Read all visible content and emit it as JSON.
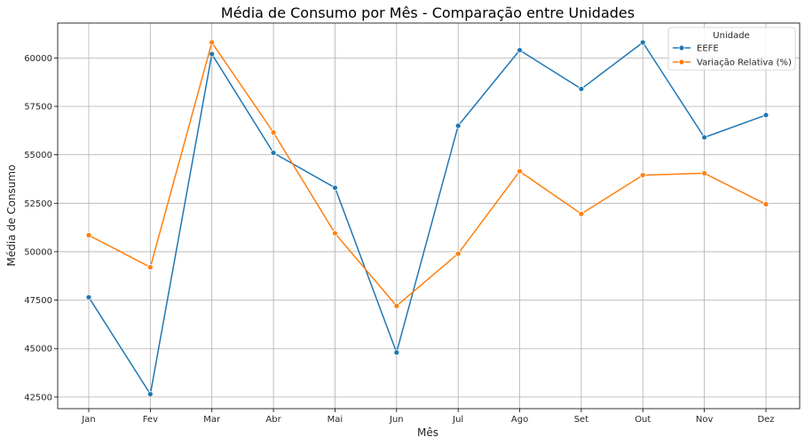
{
  "chart_data": {
    "type": "line",
    "title": "Média de Consumo por Mês - Comparação entre Unidades",
    "xlabel": "Mês",
    "ylabel": "Média de Consumo",
    "categories": [
      "Jan",
      "Fev",
      "Mar",
      "Abr",
      "Mai",
      "Jun",
      "Jul",
      "Ago",
      "Set",
      "Out",
      "Nov",
      "Dez"
    ],
    "yticks": [
      42500,
      45000,
      47500,
      50000,
      52500,
      55000,
      57500,
      60000
    ],
    "ylim": [
      41900,
      61800
    ],
    "grid": true,
    "legend": {
      "title": "Unidade",
      "placement": "top-right"
    },
    "series": [
      {
        "name": "EEFE",
        "color": "#1f77b4",
        "values": [
          47650,
          42650,
          60200,
          55100,
          53300,
          44800,
          56500,
          60400,
          58400,
          60800,
          55900,
          57050
        ]
      },
      {
        "name": "Variação Relativa (%)",
        "color": "#ff7f0e",
        "values": [
          50850,
          49200,
          60800,
          56150,
          50950,
          47200,
          49900,
          54150,
          51950,
          53950,
          54050,
          52450
        ]
      }
    ]
  }
}
